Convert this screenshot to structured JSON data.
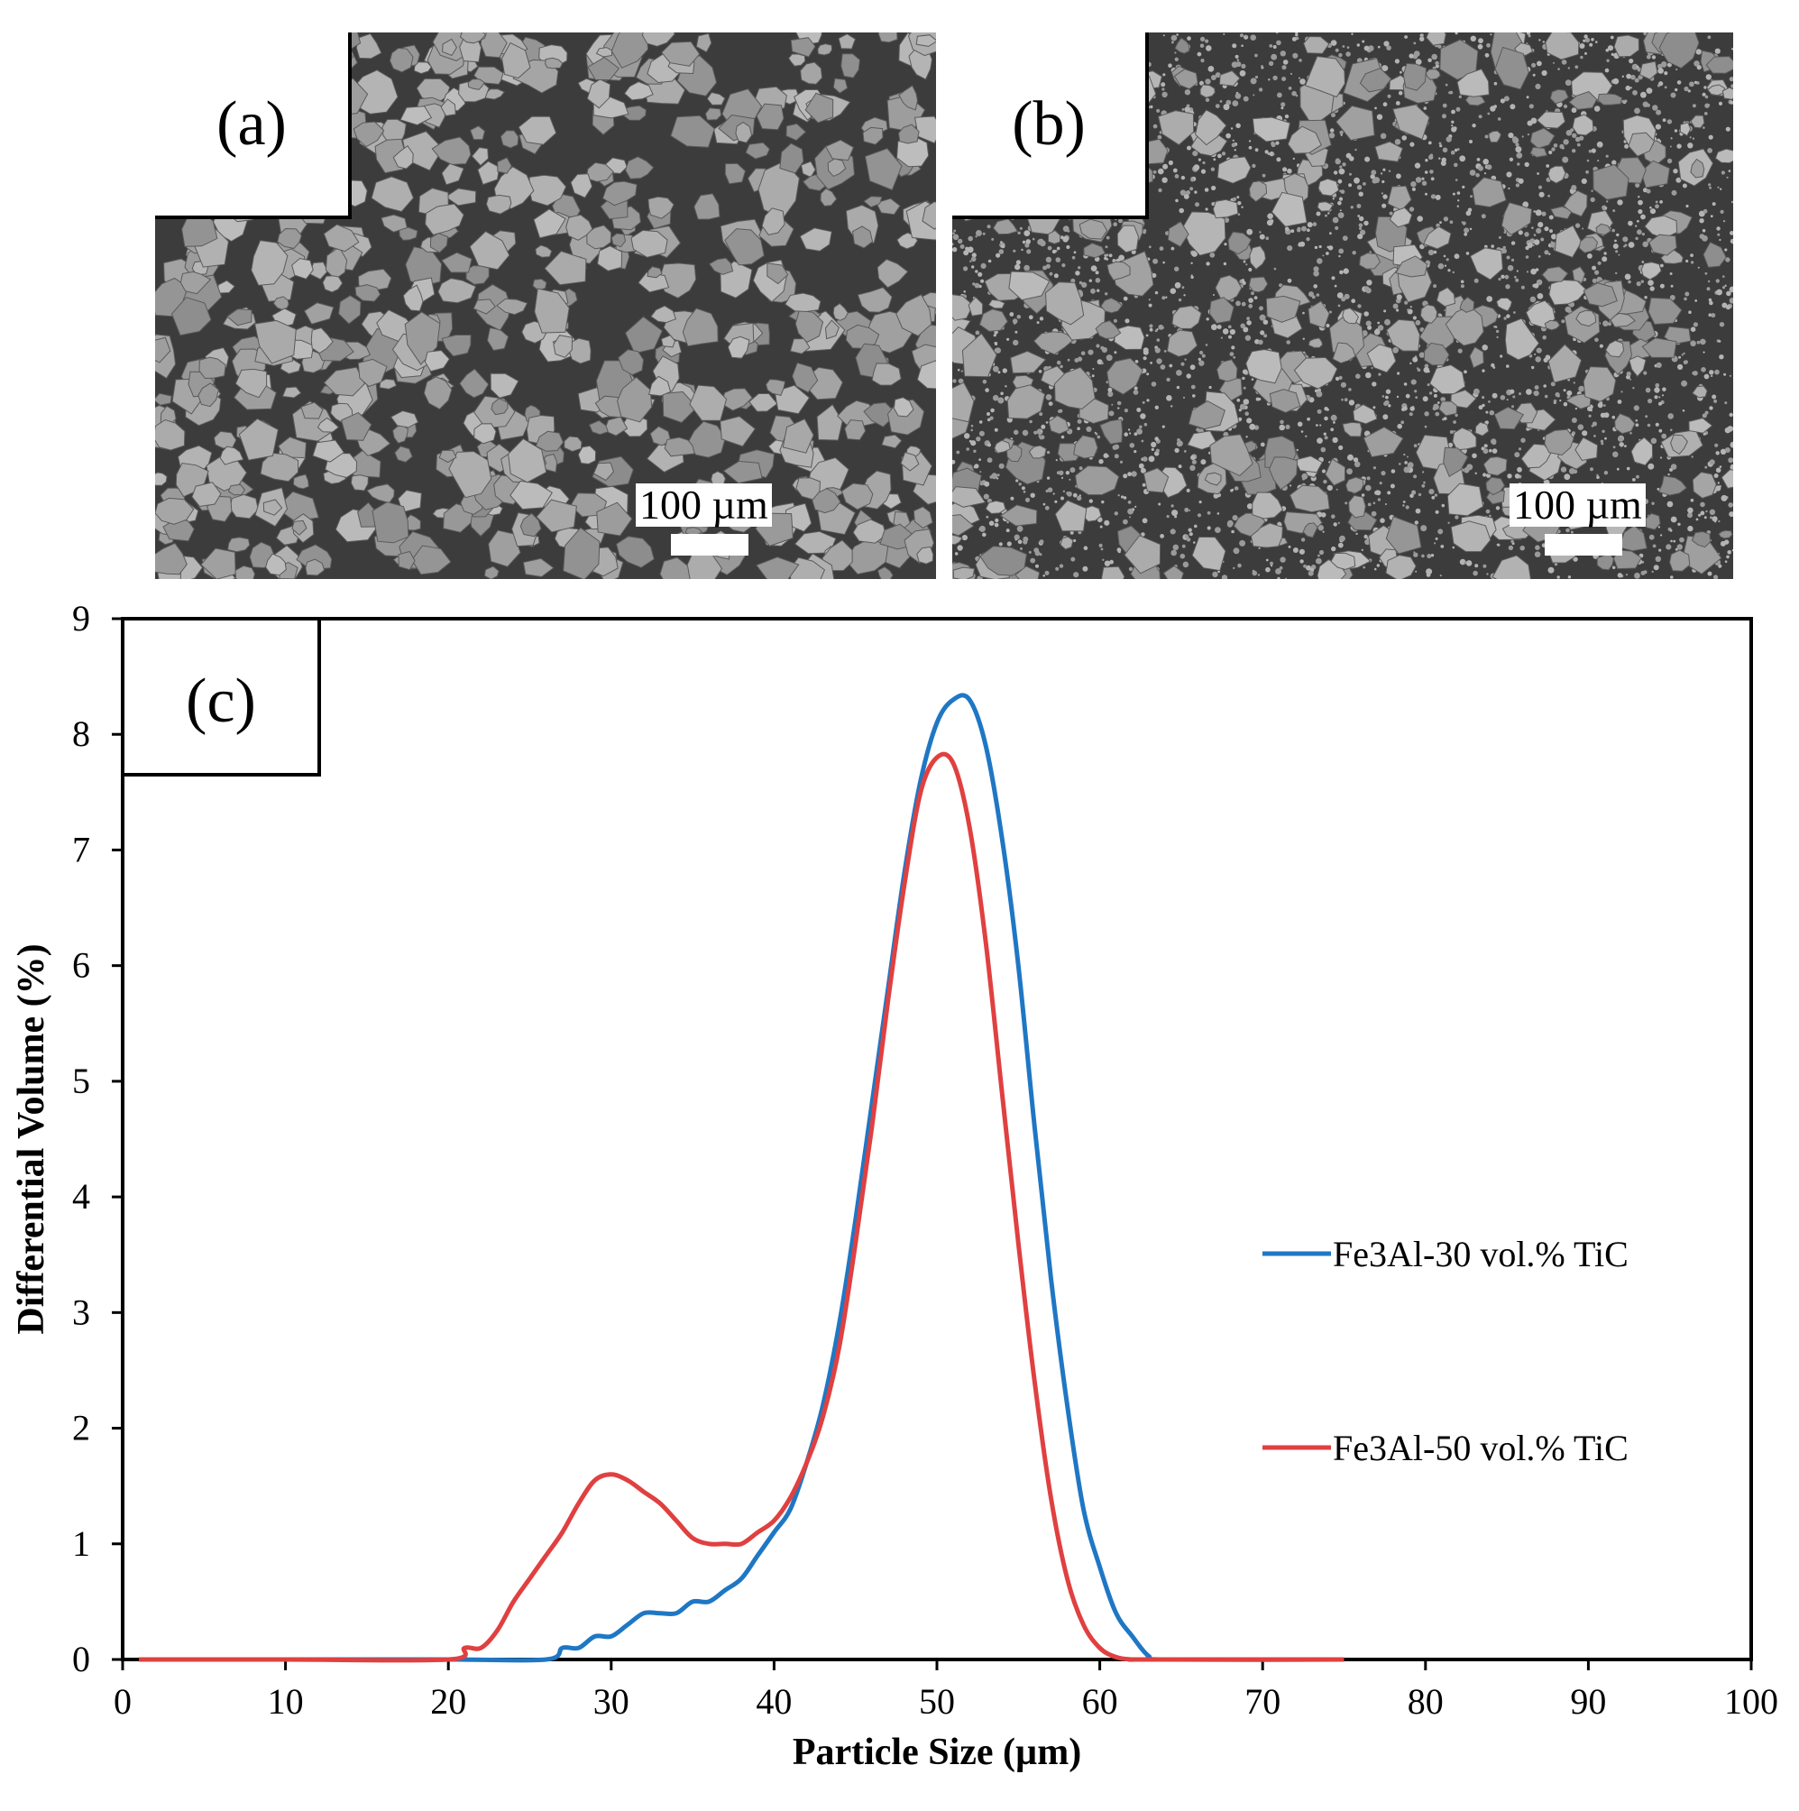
{
  "panels": {
    "a": {
      "label": "(a)",
      "scale_label": "100 µm"
    },
    "b": {
      "label": "(b)",
      "scale_label": "100 µm"
    },
    "c": {
      "label": "(c)"
    }
  },
  "chart_data": {
    "type": "line",
    "title": "",
    "xlabel": "Particle Size (µm)",
    "ylabel": "Differential Volume (%)",
    "xlim": [
      0,
      100
    ],
    "ylim": [
      0,
      9
    ],
    "xticks": [
      0,
      10,
      20,
      30,
      40,
      50,
      60,
      70,
      80,
      90,
      100
    ],
    "yticks": [
      0,
      1,
      2,
      3,
      4,
      5,
      6,
      7,
      8,
      9
    ],
    "grid": false,
    "legend_position": "right",
    "series": [
      {
        "name": "Fe3Al-30 vol.% TiC",
        "color": "#1f77c4",
        "x": [
          1,
          10,
          20,
          26,
          27,
          28,
          29,
          30,
          31,
          32,
          33,
          34,
          35,
          36,
          37,
          38,
          39,
          40,
          41,
          42,
          43,
          44,
          45,
          46,
          47,
          48,
          49,
          50,
          51,
          52,
          53,
          54,
          55,
          56,
          57,
          58,
          59,
          60,
          61,
          62,
          63,
          64,
          75
        ],
        "y": [
          0,
          0,
          0,
          0,
          0.1,
          0.1,
          0.2,
          0.2,
          0.3,
          0.4,
          0.4,
          0.4,
          0.5,
          0.5,
          0.6,
          0.7,
          0.9,
          1.1,
          1.3,
          1.7,
          2.2,
          2.9,
          3.8,
          4.8,
          5.8,
          6.8,
          7.6,
          8.1,
          8.3,
          8.3,
          7.9,
          7.1,
          6.0,
          4.6,
          3.3,
          2.2,
          1.3,
          0.8,
          0.4,
          0.2,
          0.03,
          0,
          0
        ]
      },
      {
        "name": "Fe3Al-50 vol.% TiC",
        "color": "#e04040",
        "x": [
          1,
          10,
          20,
          21,
          22,
          23,
          24,
          25,
          26,
          27,
          28,
          29,
          30,
          31,
          32,
          33,
          34,
          35,
          36,
          37,
          38,
          39,
          40,
          41,
          42,
          43,
          44,
          45,
          46,
          47,
          48,
          49,
          50,
          51,
          52,
          53,
          54,
          55,
          56,
          57,
          58,
          59,
          60,
          61,
          62,
          63,
          75
        ],
        "y": [
          0,
          0,
          0,
          0.1,
          0.1,
          0.25,
          0.5,
          0.7,
          0.9,
          1.1,
          1.35,
          1.55,
          1.6,
          1.55,
          1.45,
          1.35,
          1.2,
          1.05,
          1.0,
          1.0,
          1.0,
          1.1,
          1.2,
          1.4,
          1.7,
          2.1,
          2.7,
          3.6,
          4.6,
          5.7,
          6.7,
          7.5,
          7.8,
          7.75,
          7.2,
          6.2,
          4.9,
          3.6,
          2.4,
          1.4,
          0.7,
          0.3,
          0.1,
          0.02,
          0,
          0,
          0
        ]
      }
    ]
  }
}
